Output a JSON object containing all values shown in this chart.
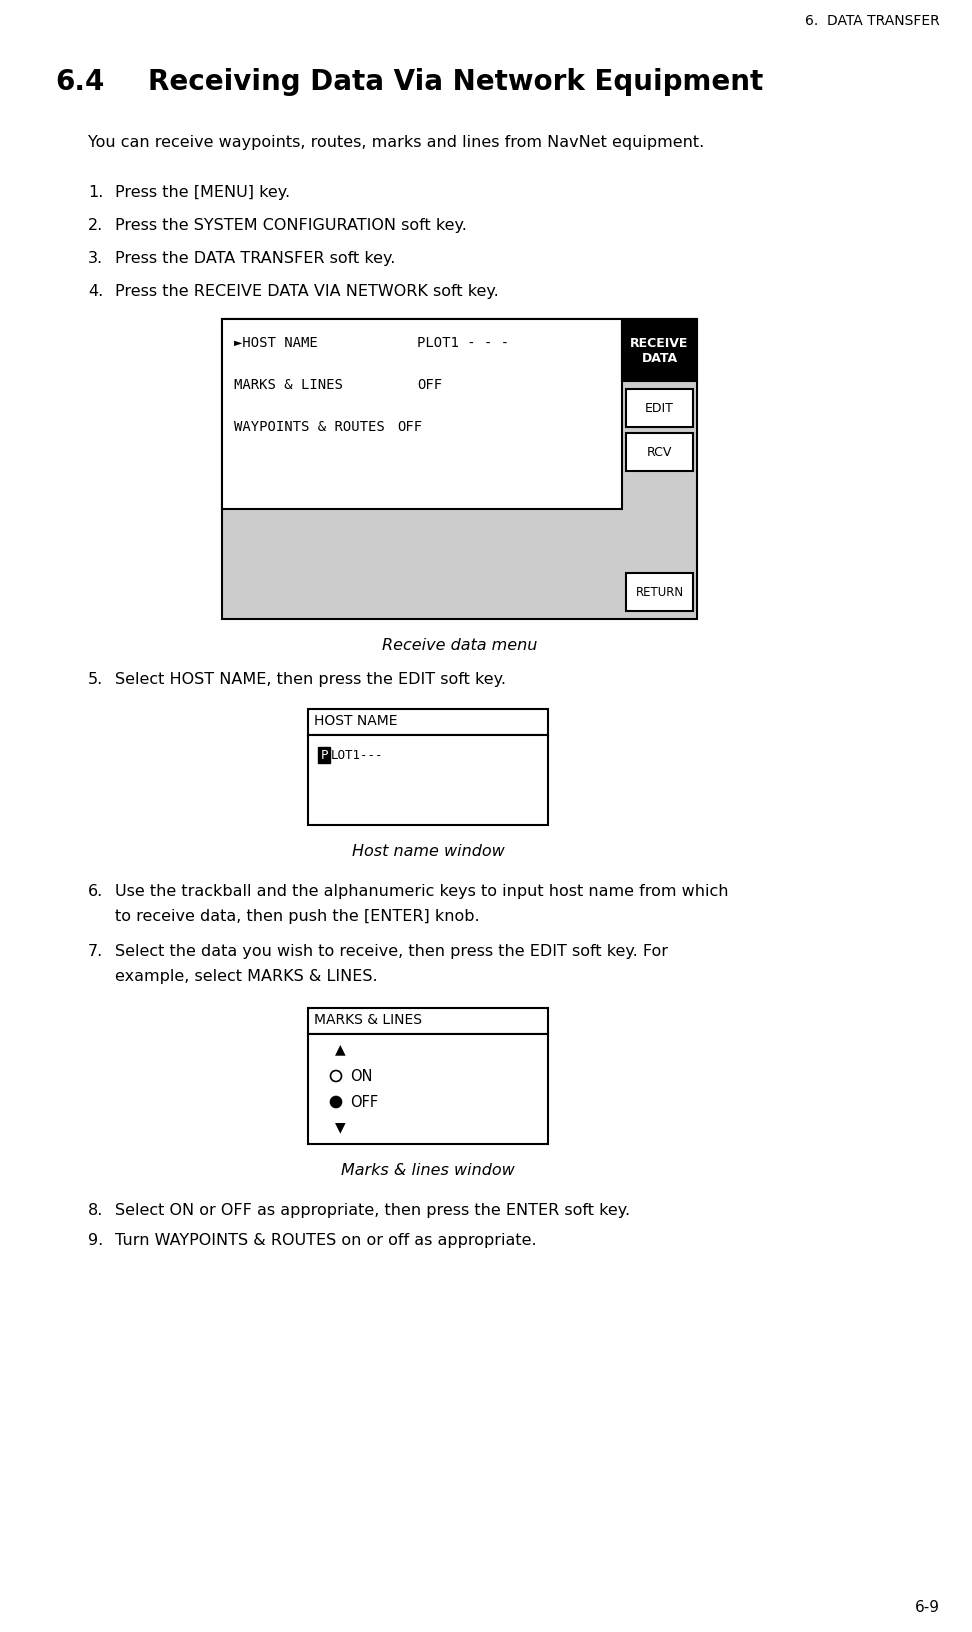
{
  "page_header": "6.  DATA TRANSFER",
  "section_num": "6.4",
  "section_title": "Receiving Data Via Network Equipment",
  "intro": "You can receive waypoints, routes, marks and lines from NavNet equipment.",
  "steps_1_4": [
    "Press the [MENU] key.",
    "Press the SYSTEM CONFIGURATION soft key.",
    "Press the DATA TRANSFER soft key.",
    "Press the RECEIVE DATA VIA NETWORK soft key."
  ],
  "receive_menu_caption": "Receive data menu",
  "step5_text": "Select HOST NAME, then press the EDIT soft key.",
  "host_name_caption": "Host name window",
  "step6_line1": "Use the trackball and the alphanumeric keys to input host name from which",
  "step6_line2": "to receive data, then push the [ENTER] knob.",
  "step7_line1": "Select the data you wish to receive, then press the EDIT soft key. For",
  "step7_line2": "example, select MARKS & LINES.",
  "marks_lines_caption": "Marks & lines window",
  "step8": "Select ON or OFF as appropriate, then press the ENTER soft key.",
  "step9": "Turn WAYPOINTS & ROUTES on or off as appropriate.",
  "page_number": "6-9",
  "bg_color": "#ffffff",
  "gray_color": "#cccccc",
  "black": "#000000",
  "white": "#ffffff"
}
